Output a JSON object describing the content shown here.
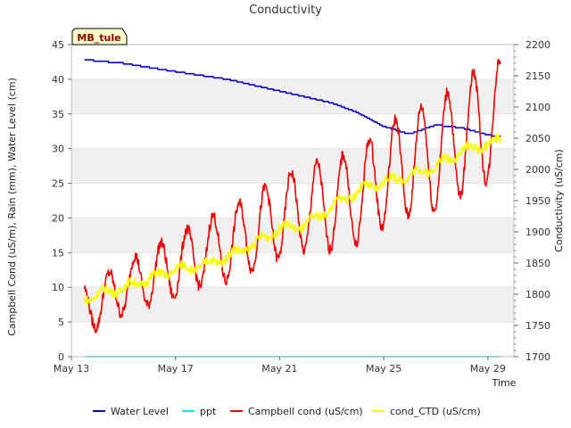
{
  "chart_data": {
    "type": "line",
    "title": "Conductivity",
    "station_label": "MB_tule",
    "xlabel": "Time",
    "ylabel_left": "Campbell Cond (uS/m), Rain (mm), Water Level (cm)",
    "ylabel_right": "Conductivity (uS/cm)",
    "x_ticks": [
      "May 13",
      "May 17",
      "May 21",
      "May 25",
      "May 29"
    ],
    "x_range_days": [
      "May 13",
      "May 30"
    ],
    "ylim_left": [
      0,
      45
    ],
    "yticks_left": [
      0,
      5,
      10,
      15,
      20,
      25,
      30,
      35,
      40,
      45
    ],
    "ylim_right": [
      1700,
      2200
    ],
    "yticks_right": [
      1700,
      1750,
      1800,
      1850,
      1900,
      1950,
      2000,
      2050,
      2100,
      2150,
      2200
    ],
    "grid": "horizontal alternating bands",
    "legend_position": "bottom",
    "series": [
      {
        "name": "Water Level",
        "color": "#0000cc",
        "axis": "left",
        "x": [
          "May 13",
          "May 15",
          "May 17",
          "May 19",
          "May 21",
          "May 23",
          "May 24",
          "May 25",
          "May 26",
          "May 27",
          "May 28",
          "May 29",
          "May 30"
        ],
        "values": [
          43.0,
          42.3,
          41.1,
          40.0,
          38.3,
          36.6,
          35.2,
          33.2,
          32.1,
          33.4,
          33.0,
          32.0,
          31.4
        ]
      },
      {
        "name": "ppt",
        "color": "#00e5e5",
        "axis": "left",
        "x": [
          "May 13",
          "May 30"
        ],
        "values": [
          0,
          0
        ]
      },
      {
        "name": "Campbell cond (uS/cm)",
        "color": "#ee0000",
        "axis": "left",
        "x": [
          "May 13",
          "May 14",
          "May 15",
          "May 16",
          "May 17",
          "May 18",
          "May 19",
          "May 20",
          "May 21",
          "May 22",
          "May 23",
          "May 24",
          "May 25",
          "May 26",
          "May 27",
          "May 28",
          "May 29",
          "May 30"
        ],
        "values": [
          6.5,
          7.5,
          10.0,
          11.5,
          13.0,
          15.0,
          16.0,
          18.0,
          20.0,
          21.5,
          22.0,
          23.0,
          26.0,
          28.0,
          29.0,
          31.5,
          34.0,
          34.0
        ]
      },
      {
        "name": "cond_CTD (uS/cm)",
        "color": "#ffff00",
        "axis": "right",
        "x": [
          "May 13",
          "May 14",
          "May 15",
          "May 16",
          "May 17",
          "May 18",
          "May 19",
          "May 20",
          "May 21",
          "May 22",
          "May 23",
          "May 24",
          "May 25",
          "May 26",
          "May 27",
          "May 28",
          "May 29",
          "May 30"
        ],
        "values": [
          1785,
          1800,
          1810,
          1825,
          1840,
          1845,
          1860,
          1880,
          1905,
          1910,
          1940,
          1965,
          1980,
          1990,
          2005,
          2030,
          2040,
          2055
        ]
      }
    ]
  }
}
